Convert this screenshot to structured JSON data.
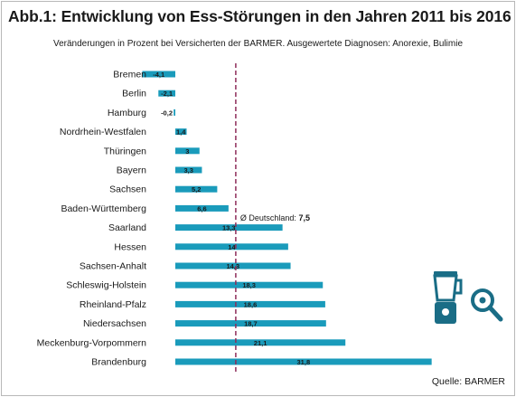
{
  "title": "Abb.1: Entwicklung von Ess-Störungen in den Jahren 2011 bis 2016",
  "subtitle": "Veränderungen in Prozent bei Versicherten der BARMER. Ausgewertete Diagnosen: Anorexie, Bulimie",
  "source": "Quelle: BARMER",
  "chart_data": {
    "type": "bar",
    "orientation": "horizontal",
    "title": "Abb.1: Entwicklung von Ess-Störungen in den Jahren 2011 bis 2016",
    "subtitle": "Veränderungen in Prozent bei Versicherten der BARMER. Ausgewertete Diagnosen: Anorexie, Bulimie",
    "categories": [
      "Bremen",
      "Berlin",
      "Hamburg",
      "Nordrhein-Westfalen",
      "Thüringen",
      "Bayern",
      "Sachsen",
      "Baden-Württemberg",
      "Saarland",
      "Hessen",
      "Sachsen-Anhalt",
      "Schleswig-Holstein",
      "Rheinland-Pfalz",
      "Niedersachsen",
      "Meckenburg-Vorpommern",
      "Brandenburg"
    ],
    "values": [
      -4.1,
      -2.1,
      -0.2,
      1.4,
      3,
      3.3,
      5.2,
      6.6,
      13.3,
      14,
      14.3,
      18.3,
      18.6,
      18.7,
      21.1,
      31.8
    ],
    "value_labels": [
      "-4,1",
      "-2,1",
      "-0,2",
      "1,4",
      "3",
      "3,3",
      "5,2",
      "6,6",
      "13,3",
      "14",
      "14,3",
      "18,3",
      "18,6",
      "18,7",
      "21,1",
      "31,8"
    ],
    "xlim": [
      -4.1,
      31.8
    ],
    "grid": false,
    "legend": "none",
    "reference_line": {
      "label": "Ø Deutschland: ",
      "value": 7.5,
      "value_label": "7,5"
    },
    "colors": {
      "bar": "#1a9bbb",
      "reference_line": "#8e2d5a",
      "icon": "#1a6d86"
    }
  },
  "icons": [
    "blender-icon",
    "frying-pan-icon"
  ]
}
